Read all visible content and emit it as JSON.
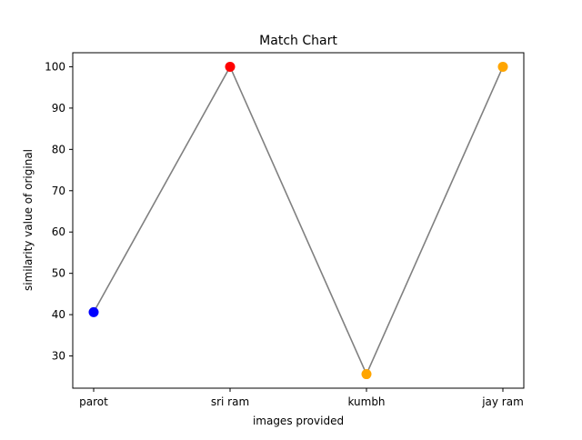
{
  "chart_data": {
    "type": "line",
    "title": "Match Chart",
    "xlabel": "images provided",
    "ylabel": "similarity value of original",
    "categories": [
      "parot",
      "sri ram",
      "kumbh",
      "jay ram"
    ],
    "values": [
      40.6,
      100,
      25.6,
      100
    ],
    "point_colors": [
      "#0000ff",
      "#ff0000",
      "#ffa500",
      "#ffa500"
    ],
    "line_color": "#808080",
    "ylim": [
      22.2,
      103.4
    ],
    "yticks": [
      30,
      40,
      50,
      60,
      70,
      80,
      90,
      100
    ],
    "grid": false,
    "legend": "none"
  }
}
